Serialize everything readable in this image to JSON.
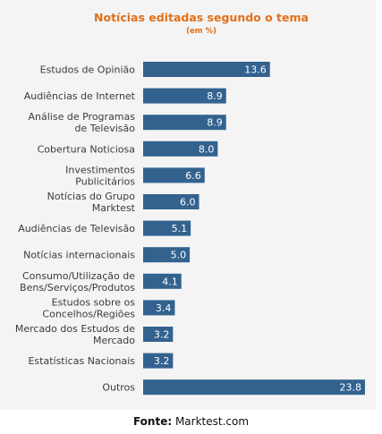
{
  "chart_data": {
    "type": "bar",
    "orientation": "horizontal",
    "title": "Notícias editadas segundo o tema",
    "subtitle": "(em %)",
    "categories": [
      [
        "Estudos de Opinião"
      ],
      [
        "Audiências de Internet"
      ],
      [
        "Análise de Programas",
        "de Televisão"
      ],
      [
        "Cobertura Noticiosa"
      ],
      [
        "Investimentos",
        "Publicitários"
      ],
      [
        "Notícias do Grupo",
        "Marktest"
      ],
      [
        "Audiências de Televisão"
      ],
      [
        "Notícias internacionais"
      ],
      [
        "Consumo/Utilização de",
        "Bens/Serviços/Produtos"
      ],
      [
        "Estudos sobre os",
        "Concelhos/Regiões"
      ],
      [
        "Mercado dos Estudos de",
        "Mercado"
      ],
      [
        "Estatísticas Nacionais"
      ],
      [
        "Outros"
      ]
    ],
    "values": [
      13.6,
      8.9,
      8.9,
      8.0,
      6.6,
      6.0,
      5.1,
      5.0,
      4.1,
      3.4,
      3.2,
      3.2,
      23.8
    ],
    "data_labels": [
      "13.6",
      "8.9",
      "8.9",
      "8.0",
      "6.6",
      "6.0",
      "5.1",
      "5.0",
      "4.1",
      "3.4",
      "3.2",
      "3.2",
      "23.8"
    ],
    "bar_color": "#33628f",
    "xlim": [
      0,
      23.8
    ],
    "grid": false
  },
  "source": {
    "label": "Fonte:",
    "value": "Marktest.com"
  },
  "colors": {
    "title": "#e0701a",
    "panel": "#f4f4f4"
  }
}
